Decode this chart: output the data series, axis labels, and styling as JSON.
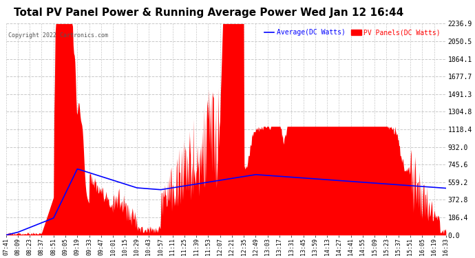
{
  "title": "Total PV Panel Power & Running Average Power Wed Jan 12 16:44",
  "copyright": "Copyright 2022 Cartronics.com",
  "legend_avg": "Average(DC Watts)",
  "legend_pv": "PV Panels(DC Watts)",
  "ylabel_right_ticks": [
    0.0,
    186.4,
    372.8,
    559.2,
    745.6,
    932.0,
    1118.4,
    1304.8,
    1491.3,
    1677.7,
    1864.1,
    2050.5,
    2236.9
  ],
  "x_labels": [
    "07:41",
    "08:09",
    "08:23",
    "08:37",
    "08:51",
    "09:05",
    "09:19",
    "09:33",
    "09:47",
    "10:01",
    "10:15",
    "10:29",
    "10:43",
    "10:57",
    "11:11",
    "11:25",
    "11:39",
    "11:53",
    "12:07",
    "12:21",
    "12:35",
    "12:49",
    "13:03",
    "13:17",
    "13:31",
    "13:45",
    "13:59",
    "14:13",
    "14:27",
    "14:41",
    "14:55",
    "15:09",
    "15:23",
    "15:37",
    "15:51",
    "16:05",
    "16:19",
    "16:33"
  ],
  "background_color": "#ffffff",
  "plot_bg_color": "#ffffff",
  "grid_color": "#c8c8c8",
  "title_fontsize": 11,
  "title_color": "#000000",
  "pv_color": "#ff0000",
  "avg_color": "#0000ff",
  "y_max": 2236.9,
  "y_min": 0.0
}
